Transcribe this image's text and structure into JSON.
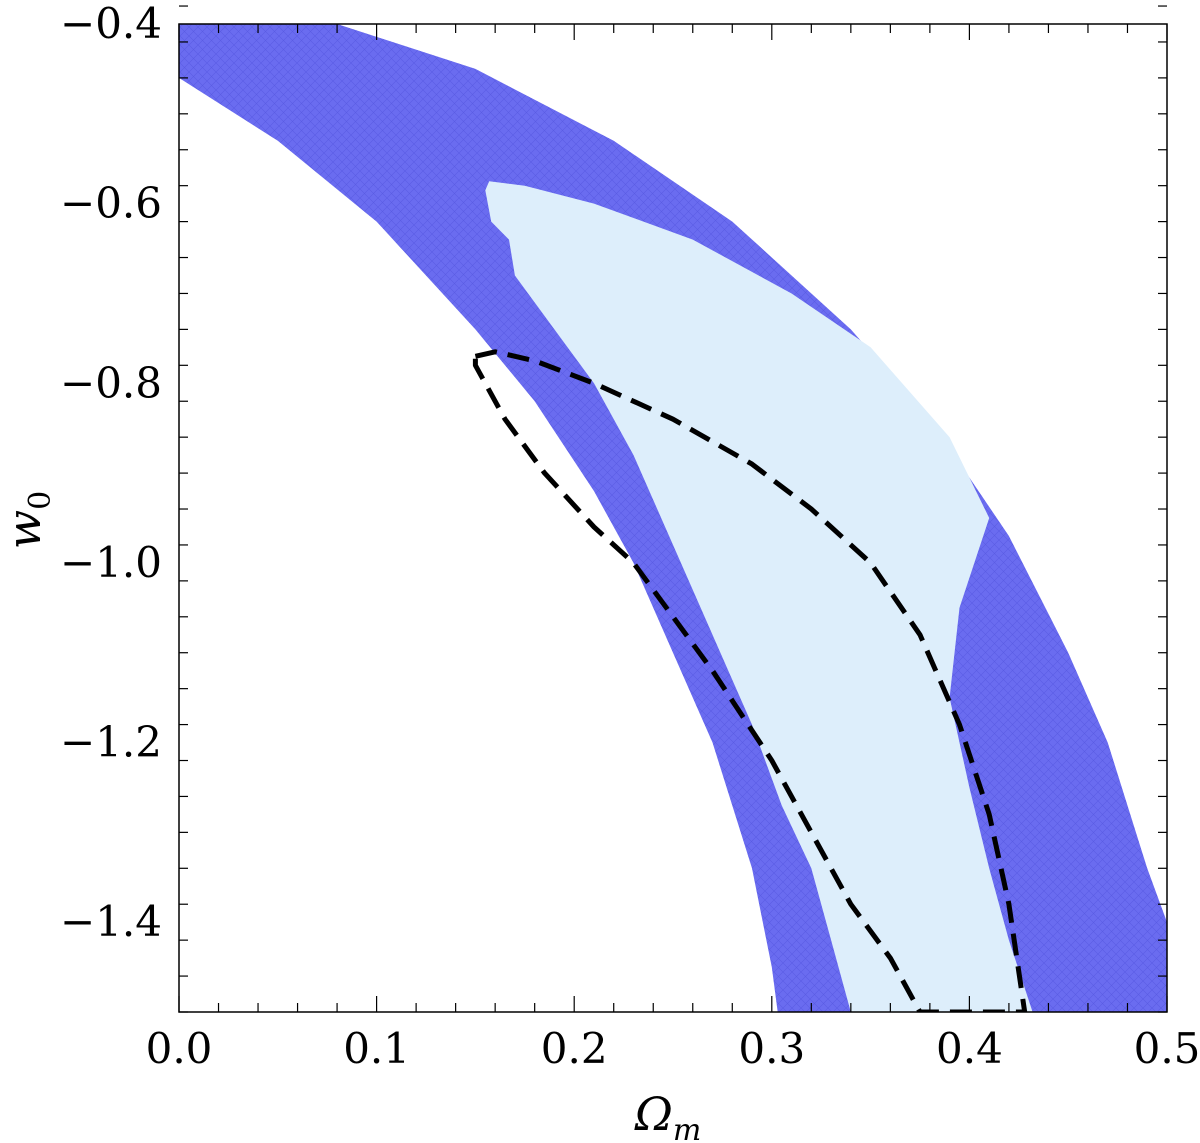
{
  "chart_data": {
    "type": "contour",
    "title": "",
    "xlabel": "Ω",
    "xlabel_subscript": "m",
    "ylabel": "w",
    "ylabel_subscript": "0",
    "xlim": [
      0.0,
      0.5
    ],
    "ylim": [
      -1.5,
      -0.4
    ],
    "grid": false,
    "x_ticks": [
      0.0,
      0.1,
      0.2,
      0.3,
      0.4,
      0.5
    ],
    "x_tick_labels": [
      "0.0",
      "0.1",
      "0.2",
      "0.3",
      "0.4",
      "0.5"
    ],
    "y_ticks": [
      -0.4,
      -0.6,
      -0.8,
      -1.0,
      -1.2,
      -1.4
    ],
    "y_tick_labels": [
      "−0.4",
      "−0.6",
      "−0.8",
      "−1.0",
      "−1.2",
      "−1.4"
    ],
    "regions": [
      {
        "style": "outer-band",
        "color": "#6a6cf0",
        "boundary": [
          [
            0.0,
            -0.4
          ],
          [
            0.08,
            -0.4
          ],
          [
            0.15,
            -0.45
          ],
          [
            0.22,
            -0.53
          ],
          [
            0.28,
            -0.62
          ],
          [
            0.34,
            -0.74
          ],
          [
            0.38,
            -0.84
          ],
          [
            0.42,
            -0.97
          ],
          [
            0.45,
            -1.1
          ],
          [
            0.47,
            -1.2
          ],
          [
            0.49,
            -1.34
          ],
          [
            0.5,
            -1.4
          ],
          [
            0.5,
            -1.5
          ],
          [
            0.303,
            -1.5
          ],
          [
            0.3,
            -1.45
          ],
          [
            0.29,
            -1.34
          ],
          [
            0.27,
            -1.2
          ],
          [
            0.25,
            -1.1
          ],
          [
            0.23,
            -1.0
          ],
          [
            0.21,
            -0.92
          ],
          [
            0.18,
            -0.82
          ],
          [
            0.15,
            -0.74
          ],
          [
            0.1,
            -0.62
          ],
          [
            0.05,
            -0.53
          ],
          [
            0.0,
            -0.46
          ]
        ]
      },
      {
        "style": "inner-band",
        "color": "#ddeefb",
        "boundary": [
          [
            0.157,
            -0.575
          ],
          [
            0.175,
            -0.58
          ],
          [
            0.21,
            -0.6
          ],
          [
            0.26,
            -0.64
          ],
          [
            0.31,
            -0.7
          ],
          [
            0.35,
            -0.76
          ],
          [
            0.39,
            -0.86
          ],
          [
            0.41,
            -0.95
          ],
          [
            0.395,
            -1.05
          ],
          [
            0.39,
            -1.15
          ],
          [
            0.4,
            -1.25
          ],
          [
            0.41,
            -1.34
          ],
          [
            0.42,
            -1.42
          ],
          [
            0.432,
            -1.5
          ],
          [
            0.34,
            -1.5
          ],
          [
            0.33,
            -1.42
          ],
          [
            0.32,
            -1.34
          ],
          [
            0.305,
            -1.27
          ],
          [
            0.29,
            -1.18
          ],
          [
            0.27,
            -1.08
          ],
          [
            0.25,
            -0.98
          ],
          [
            0.23,
            -0.88
          ],
          [
            0.21,
            -0.8
          ],
          [
            0.19,
            -0.74
          ],
          [
            0.17,
            -0.68
          ],
          [
            0.167,
            -0.64
          ],
          [
            0.158,
            -0.62
          ],
          [
            0.155,
            -0.585
          ]
        ]
      }
    ],
    "contours": [
      {
        "style": "dashed",
        "color": "#000000",
        "points": [
          [
            0.15,
            -0.77
          ],
          [
            0.16,
            -0.765
          ],
          [
            0.18,
            -0.775
          ],
          [
            0.21,
            -0.8
          ],
          [
            0.25,
            -0.84
          ],
          [
            0.29,
            -0.89
          ],
          [
            0.32,
            -0.94
          ],
          [
            0.35,
            -1.0
          ],
          [
            0.375,
            -1.08
          ],
          [
            0.395,
            -1.18
          ],
          [
            0.41,
            -1.28
          ],
          [
            0.42,
            -1.38
          ],
          [
            0.428,
            -1.5
          ],
          [
            0.375,
            -1.5
          ],
          [
            0.36,
            -1.44
          ],
          [
            0.34,
            -1.38
          ],
          [
            0.32,
            -1.3
          ],
          [
            0.3,
            -1.22
          ],
          [
            0.27,
            -1.12
          ],
          [
            0.23,
            -1.0
          ],
          [
            0.21,
            -0.96
          ],
          [
            0.185,
            -0.9
          ],
          [
            0.165,
            -0.84
          ],
          [
            0.155,
            -0.8
          ],
          [
            0.15,
            -0.78
          ]
        ]
      }
    ]
  }
}
